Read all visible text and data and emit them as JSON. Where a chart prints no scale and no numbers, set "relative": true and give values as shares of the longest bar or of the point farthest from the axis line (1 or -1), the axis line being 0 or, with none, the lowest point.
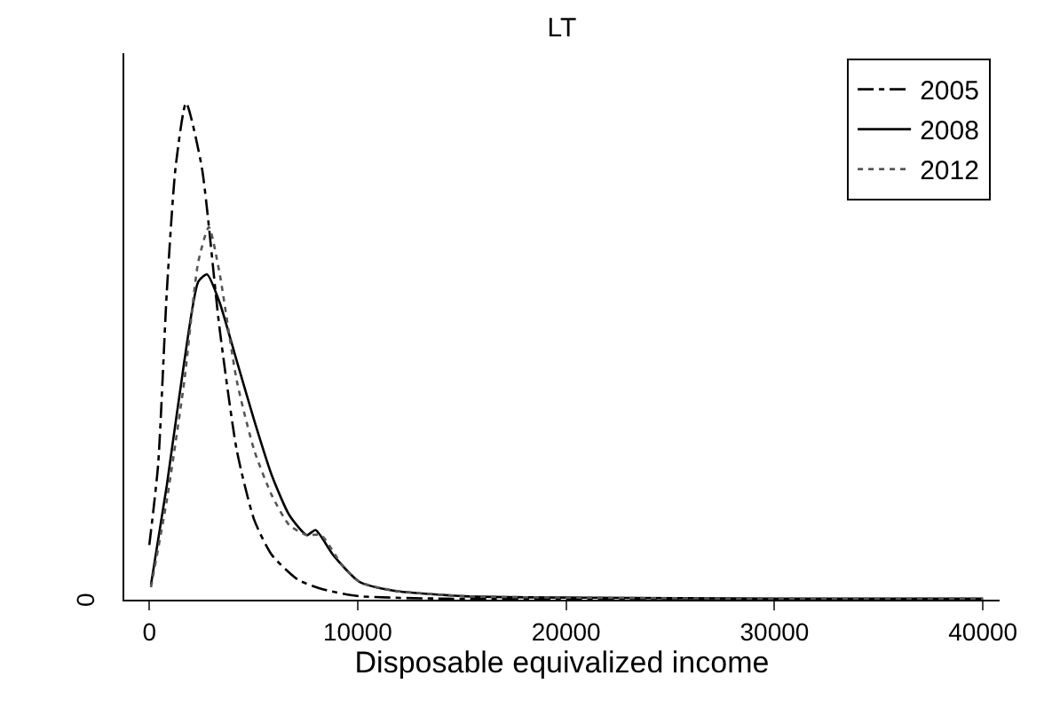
{
  "chart_data": {
    "type": "line",
    "title": "LT",
    "xlabel": "Disposable equivalized income",
    "relative": true,
    "annotations": [
      "0"
    ],
    "xlim": [
      -1200,
      40800
    ],
    "xticks": [
      0,
      10000,
      20000,
      30000,
      40000
    ],
    "legend": "top right",
    "series": [
      {
        "name": "2005",
        "color": "#000000",
        "line_style": "dashdot",
        "x": [
          0,
          420,
          840,
          1260,
          1765,
          2520,
          3360,
          4200,
          5040,
          5880,
          7140,
          8400,
          10080,
          14290,
          20000,
          30000,
          40000
        ],
        "values": [
          0.11,
          0.27,
          0.62,
          0.87,
          1.0,
          0.87,
          0.55,
          0.3,
          0.16,
          0.09,
          0.04,
          0.02,
          0.007,
          0.002,
          0.001,
          0.001,
          0.001
        ]
      },
      {
        "name": "2008",
        "color": "#000000",
        "line_style": "solid",
        "x": [
          80,
          840,
          1680,
          2350,
          2770,
          3360,
          4200,
          5040,
          5880,
          6720,
          7560,
          7980,
          8820,
          10080,
          11760,
          15130,
          21000,
          30000,
          40000
        ],
        "values": [
          0.03,
          0.23,
          0.48,
          0.64,
          0.655,
          0.6,
          0.48,
          0.36,
          0.25,
          0.17,
          0.13,
          0.14,
          0.09,
          0.036,
          0.018,
          0.007,
          0.004,
          0.002,
          0.002
        ]
      },
      {
        "name": "2012",
        "color": "#555555",
        "line_style": "dotted",
        "x": [
          80,
          840,
          1680,
          2350,
          2860,
          3360,
          4200,
          5040,
          5880,
          6720,
          7560,
          8240,
          9240,
          10080,
          11760,
          15130,
          21000,
          30000,
          40000
        ],
        "values": [
          0.025,
          0.2,
          0.44,
          0.68,
          0.75,
          0.66,
          0.44,
          0.3,
          0.21,
          0.15,
          0.13,
          0.13,
          0.07,
          0.036,
          0.018,
          0.007,
          0.004,
          0.002,
          0.002
        ]
      }
    ]
  }
}
